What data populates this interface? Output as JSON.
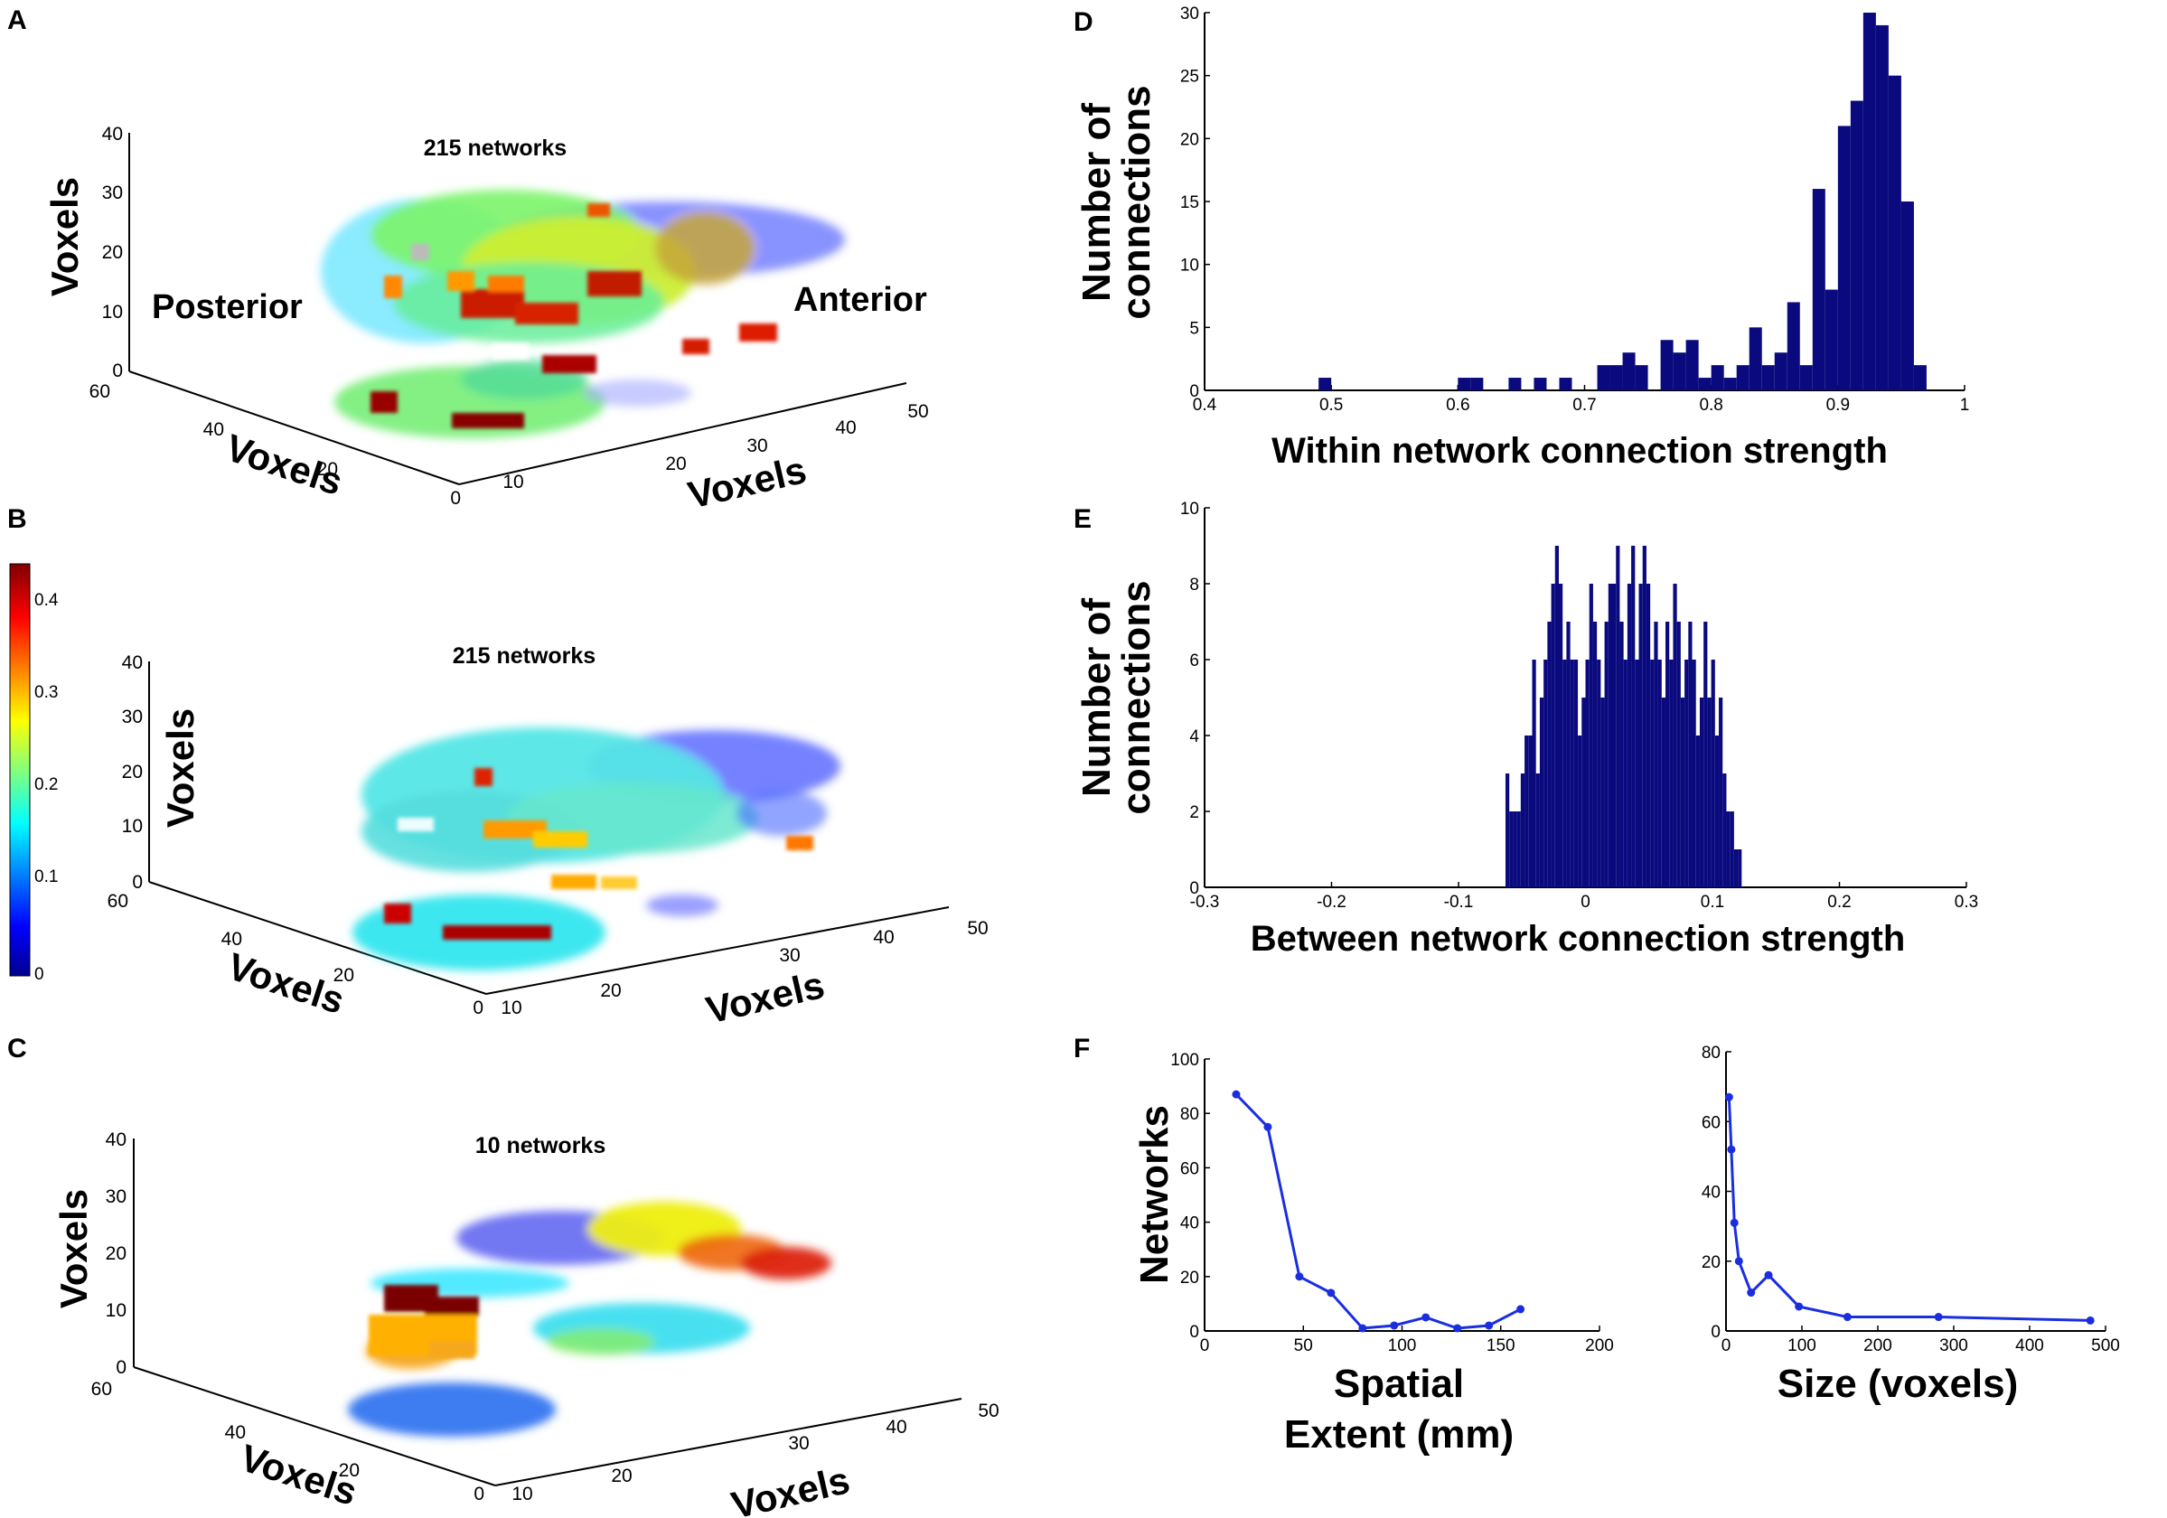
{
  "panels": {
    "A": {
      "letter": "A",
      "title": "215 networks",
      "posterior": "Posterior",
      "anterior": "Anterior",
      "z_label": "Voxels",
      "y_label": "Voxels",
      "x_label": "Voxels",
      "z_ticks": [
        "40",
        "30",
        "20",
        "10",
        "0"
      ],
      "y_ticks": [
        "60",
        "40",
        "20",
        "0"
      ],
      "x_ticks": [
        "10",
        "20",
        "30",
        "40",
        "50"
      ]
    },
    "B": {
      "letter": "B",
      "title": "215 networks",
      "z_label": "Voxels",
      "y_label": "Voxels",
      "x_label": "Voxels",
      "z_ticks": [
        "40",
        "30",
        "20",
        "10",
        "0"
      ],
      "y_ticks": [
        "60",
        "40",
        "20",
        "0"
      ],
      "x_ticks": [
        "10",
        "20",
        "30",
        "40",
        "50"
      ],
      "colorbar_ticks": [
        "0.4",
        "0.3",
        "0.2",
        "0.1",
        "0"
      ]
    },
    "C": {
      "letter": "C",
      "title": "10 networks",
      "z_label": "Voxels",
      "y_label": "Voxels",
      "x_label": "Voxels",
      "z_ticks": [
        "40",
        "30",
        "20",
        "10",
        "0"
      ],
      "y_ticks": [
        "60",
        "40",
        "20",
        "0"
      ],
      "x_ticks": [
        "10",
        "20",
        "30",
        "40",
        "50"
      ]
    },
    "D": {
      "letter": "D"
    },
    "E": {
      "letter": "E"
    },
    "F": {
      "letter": "F"
    }
  },
  "colors": {
    "histogram_bar": "#0a0a7e",
    "line": "#1a2ee0",
    "axis": "#000000"
  },
  "chart_data": [
    {
      "id": "D",
      "type": "bar",
      "title": "",
      "xlabel": "Within network  connection strength",
      "ylabel": [
        "Number of",
        "connections"
      ],
      "xlim": [
        0.4,
        1.0
      ],
      "ylim": [
        0,
        30
      ],
      "xticks": [
        "0.4",
        "0.5",
        "0.6",
        "0.7",
        "0.8",
        "0.9",
        "1"
      ],
      "yticks": [
        "0",
        "5",
        "10",
        "15",
        "20",
        "25",
        "30"
      ],
      "bin_width": 0.01,
      "bin_starts": [
        0.49,
        0.6,
        0.61,
        0.64,
        0.66,
        0.68,
        0.71,
        0.72,
        0.73,
        0.74,
        0.75,
        0.76,
        0.77,
        0.78,
        0.79,
        0.8,
        0.81,
        0.82,
        0.83,
        0.84,
        0.85,
        0.86,
        0.87,
        0.88,
        0.89,
        0.9,
        0.91,
        0.92,
        0.93,
        0.94,
        0.95,
        0.96,
        0.97
      ],
      "values": [
        1,
        1,
        1,
        1,
        1,
        1,
        2,
        2,
        3,
        2,
        0,
        4,
        3,
        4,
        1,
        2,
        1,
        2,
        5,
        2,
        3,
        7,
        2,
        16,
        8,
        21,
        23,
        30,
        29,
        25,
        15,
        2,
        0
      ]
    },
    {
      "id": "E",
      "type": "bar",
      "title": "",
      "xlabel": "Between network  connection strength",
      "ylabel": [
        "Number of",
        "connections"
      ],
      "xlim": [
        -0.3,
        0.3
      ],
      "ylim": [
        0,
        10
      ],
      "xticks": [
        "-0.3",
        "-0.2",
        "-0.1",
        "0",
        "0.1",
        "0.2",
        "0.3"
      ],
      "yticks": [
        "0",
        "2",
        "4",
        "6",
        "8",
        "10"
      ],
      "bin_width": 0.003,
      "bin_start": -0.063,
      "values": [
        3,
        2,
        2,
        2,
        3,
        4,
        4,
        6,
        3,
        5,
        6,
        7,
        8,
        9,
        8,
        6,
        7,
        6,
        6,
        4,
        5,
        6,
        8,
        7,
        6,
        5,
        7,
        8,
        8,
        9,
        7,
        6,
        8,
        9,
        6,
        8,
        9,
        8,
        6,
        7,
        6,
        5,
        7,
        6,
        8,
        7,
        5,
        6,
        7,
        6,
        4,
        5,
        7,
        5,
        6,
        4,
        5,
        3,
        2,
        2,
        1,
        1
      ]
    },
    {
      "id": "F1",
      "type": "line",
      "title": "",
      "xlabel": [
        "Spatial",
        "Extent (mm)"
      ],
      "ylabel": "Networks",
      "xlim": [
        0,
        200
      ],
      "ylim": [
        0,
        100
      ],
      "xticks": [
        "0",
        "50",
        "100",
        "150",
        "200"
      ],
      "yticks": [
        "0",
        "20",
        "40",
        "60",
        "80",
        "100"
      ],
      "x": [
        16,
        32,
        48,
        64,
        80,
        96,
        112,
        128,
        144,
        160
      ],
      "y": [
        87,
        75,
        20,
        14,
        1,
        2,
        5,
        1,
        2,
        8
      ]
    },
    {
      "id": "F2",
      "type": "line",
      "title": "",
      "xlabel": "Size (voxels)",
      "ylabel": "",
      "xlim": [
        0,
        500
      ],
      "ylim": [
        0,
        80
      ],
      "xticks": [
        "0",
        "100",
        "200",
        "300",
        "400",
        "500"
      ],
      "yticks": [
        "0",
        "20",
        "40",
        "60",
        "80"
      ],
      "x": [
        4,
        7,
        11,
        17,
        33,
        56,
        96,
        160,
        280,
        480
      ],
      "y": [
        67,
        52,
        31,
        20,
        11,
        16,
        7,
        4,
        4,
        3
      ]
    }
  ]
}
